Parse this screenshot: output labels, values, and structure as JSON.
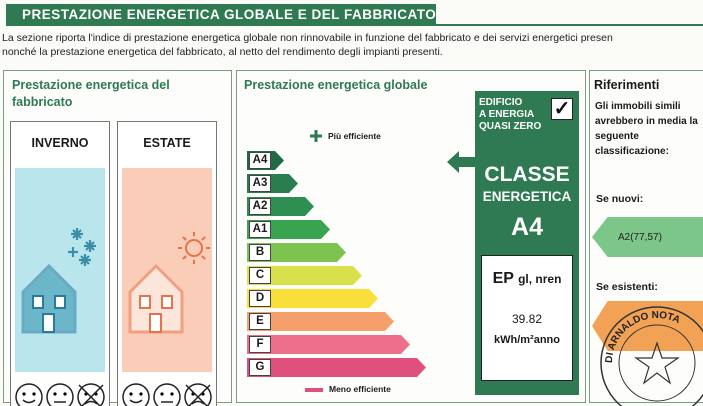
{
  "header": {
    "title": "PRESTAZIONE ENERGETICA GLOBALE  E DEL FABBRICATO"
  },
  "intro": {
    "line1": "La sezione riporta l'indice di prestazione energetica globale non rinnovabile in funzione del fabbricato e dei servizi energetici presen",
    "line2": "nonché la prestazione energetica del fabbricato, al netto del rendimento degli impianti presenti."
  },
  "building": {
    "title_line1": "Prestazione energetica del",
    "title_line2": "fabbricato",
    "winter_label": "INVERNO",
    "summer_label": "ESTATE",
    "winter_color": "#b9e6ec",
    "summer_color": "#f9cdb8",
    "winter_rating_face": "sad",
    "summer_rating_face": "sad"
  },
  "global": {
    "title": "Prestazione energetica globale",
    "more_efficient": "Più efficiente",
    "less_efficient": "Meno efficiente",
    "classes": [
      {
        "label": "A4",
        "color": "#1f6b45",
        "length": 0.16
      },
      {
        "label": "A3",
        "color": "#2a7d4f",
        "length": 0.22
      },
      {
        "label": "A2",
        "color": "#2d8f52",
        "length": 0.29
      },
      {
        "label": "A1",
        "color": "#38a44f",
        "length": 0.36
      },
      {
        "label": "B",
        "color": "#7cc34f",
        "length": 0.43
      },
      {
        "label": "C",
        "color": "#d8e04a",
        "length": 0.5
      },
      {
        "label": "D",
        "color": "#f8df3a",
        "length": 0.57
      },
      {
        "label": "E",
        "color": "#f5a06a",
        "length": 0.64
      },
      {
        "label": "F",
        "color": "#ee6f8a",
        "length": 0.71
      },
      {
        "label": "G",
        "color": "#e0507c",
        "length": 0.78
      }
    ],
    "selected_class": "A4",
    "nzeb_text": "EDIFICIO\nA ENERGIA\nQUASI ZERO",
    "nzeb_check": "✓",
    "classe_label": "CLASSE",
    "energetica_label": "ENERGETICA",
    "class_value": "A4",
    "ep_label": "EP",
    "ep_sub": "gl, nren",
    "ep_value": "39.82",
    "ep_unit": "kWh/m²anno",
    "box_color": "#2f7a52"
  },
  "references": {
    "title": "Riferimenti",
    "text": "Gli immobili simili avrebbero in media la seguente classificazione:",
    "new_label": "Se nuovi:",
    "new_value": "A2(77,57)",
    "existing_label": "Se esistenti:",
    "stamp_text": "DI ARNALDO NOTA"
  }
}
